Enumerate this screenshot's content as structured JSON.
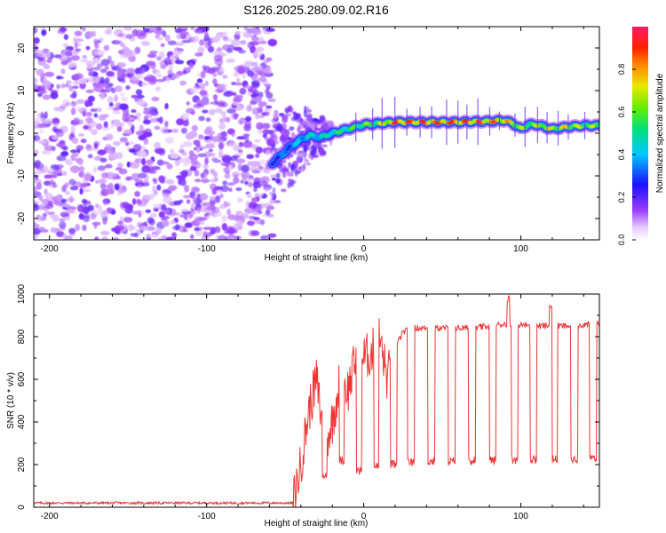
{
  "title": "S126.2025.280.09.02.R16",
  "chart_data": [
    {
      "type": "heatmap",
      "title": "S126.2025.280.09.02.R16",
      "xlabel": "Height of straight line (km)",
      "ylabel": "Frequency (Hz)",
      "xlim": [
        -210,
        150
      ],
      "ylim": [
        -25,
        25
      ],
      "xticks": [
        -200,
        -100,
        0,
        100
      ],
      "yticks": [
        -20,
        -10,
        0,
        10,
        20
      ],
      "noise_region_x": [
        -210,
        -58
      ],
      "transition_region_x": [
        -58,
        -20
      ],
      "ridge": {
        "x": [
          -58,
          -52,
          -46,
          -40,
          -34,
          -28,
          -20,
          -10,
          0,
          10,
          20,
          40,
          60,
          80,
          90,
          95,
          100,
          105,
          110,
          115,
          120,
          130,
          140,
          150
        ],
        "freq": [
          -7,
          -5,
          -3,
          -1.5,
          -0.5,
          -1,
          0,
          1,
          2,
          2.3,
          2.6,
          2.6,
          2.6,
          2.8,
          3,
          2.3,
          1,
          2,
          2,
          1.5,
          1,
          1.5,
          1.8,
          1.8
        ],
        "amp": [
          0.3,
          0.35,
          0.4,
          0.45,
          0.5,
          0.5,
          0.55,
          0.6,
          0.65,
          0.7,
          0.95,
          0.95,
          0.95,
          0.9,
          0.85,
          0.8,
          0.7,
          0.7,
          0.7,
          0.8,
          0.75,
          0.8,
          0.7,
          0.7
        ]
      },
      "colorbar": {
        "label": "Normalized spectral amplitude",
        "range": [
          0,
          1
        ],
        "ticks": [
          0.0,
          0.2,
          0.4,
          0.6,
          0.8
        ]
      }
    },
    {
      "type": "line",
      "xlabel": "Height of straight line (km)",
      "ylabel": "SNR (10 * v/v)",
      "xlim": [
        -210,
        150
      ],
      "ylim": [
        0,
        1000
      ],
      "xticks": [
        -200,
        -100,
        0,
        100
      ],
      "yticks": [
        0,
        200,
        400,
        600,
        800,
        1000
      ],
      "color": "#ee3333",
      "series": [
        {
          "name": "SNR",
          "baseline_region_x": [
            -210,
            -45
          ],
          "baseline_value": 20,
          "x": [
            -210,
            -100,
            -60,
            -45,
            -40,
            -35,
            -30,
            -25,
            -20,
            -15,
            -10,
            -5,
            0,
            5,
            10,
            15,
            20,
            25,
            30,
            50,
            70,
            90,
            110,
            130,
            150
          ],
          "snr": [
            20,
            20,
            20,
            20,
            200,
            450,
            600,
            300,
            400,
            600,
            550,
            700,
            700,
            720,
            800,
            600,
            750,
            820,
            840,
            840,
            840,
            860,
            850,
            850,
            860
          ],
          "dips": [
            {
              "x": -25,
              "value": 150
            },
            {
              "x": -14,
              "value": 220
            },
            {
              "x": -3,
              "value": 170
            },
            {
              "x": 8,
              "value": 190
            },
            {
              "x": 19,
              "value": 200
            },
            {
              "x": 30,
              "value": 210
            },
            {
              "x": 43,
              "value": 215
            },
            {
              "x": 56,
              "value": 215
            },
            {
              "x": 69,
              "value": 220
            },
            {
              "x": 82,
              "value": 220
            },
            {
              "x": 96,
              "value": 225
            },
            {
              "x": 108,
              "value": 225
            },
            {
              "x": 121,
              "value": 225
            },
            {
              "x": 134,
              "value": 225
            },
            {
              "x": 146,
              "value": 230
            }
          ],
          "spikes": [
            {
              "x": 92,
              "value": 1000
            },
            {
              "x": 119,
              "value": 970
            }
          ]
        }
      ]
    }
  ]
}
